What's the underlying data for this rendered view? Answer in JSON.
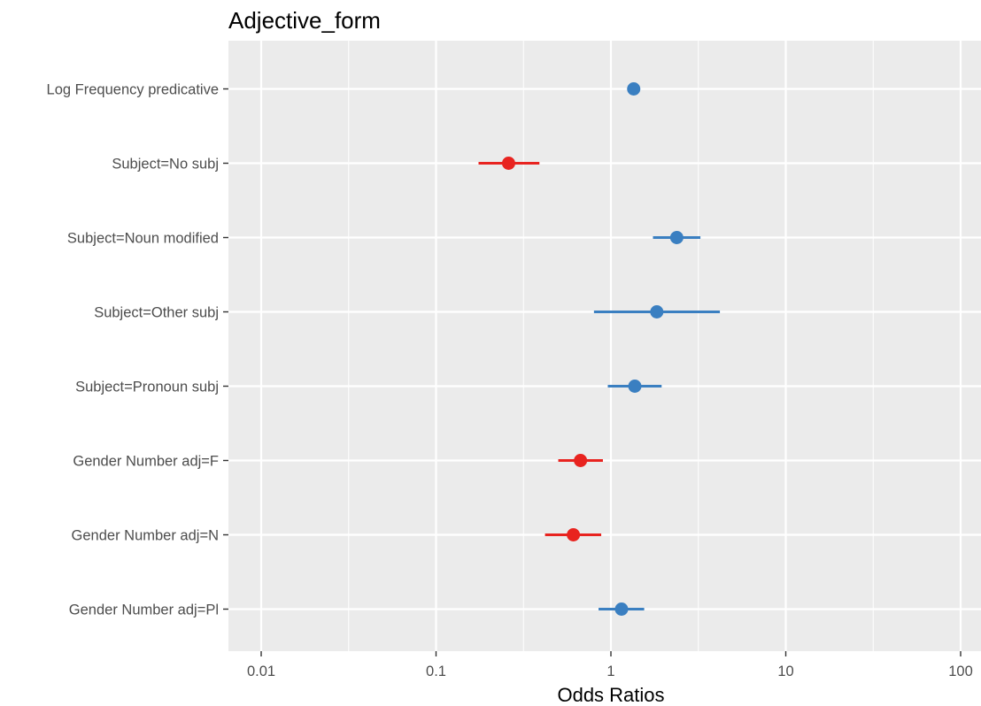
{
  "chart_data": {
    "type": "scatter",
    "title": "Adjective_form",
    "xlabel": "Odds Ratios",
    "ylabel": "",
    "x_scale": "log10",
    "xlim": [
      0.0066,
      150
    ],
    "x_ticks": [
      {
        "value": 0.01,
        "label": "0.01"
      },
      {
        "value": 0.1,
        "label": "0.1"
      },
      {
        "value": 1,
        "label": "1"
      },
      {
        "value": 10,
        "label": "10"
      },
      {
        "value": 100,
        "label": "100"
      }
    ],
    "grid": true,
    "legend": "none",
    "colors": {
      "positive": "#3a7fc1",
      "negative": "#e8231f",
      "panel": "#ebebeb",
      "grid": "#ffffff"
    },
    "terms": [
      {
        "label": "Log Frequency predicative",
        "estimate": 1.35,
        "ci_low": 1.35,
        "ci_high": 1.35,
        "direction": "positive"
      },
      {
        "label": "Subject=No subj",
        "estimate": 0.26,
        "ci_low": 0.175,
        "ci_high": 0.39,
        "direction": "negative"
      },
      {
        "label": "Subject=Noun modified",
        "estimate": 2.38,
        "ci_low": 1.74,
        "ci_high": 3.25,
        "direction": "positive"
      },
      {
        "label": "Subject=Other subj",
        "estimate": 1.83,
        "ci_low": 0.8,
        "ci_high": 4.2,
        "direction": "positive"
      },
      {
        "label": "Subject=Pronoun subj",
        "estimate": 1.37,
        "ci_low": 0.96,
        "ci_high": 1.95,
        "direction": "positive"
      },
      {
        "label": "Gender Number adj=F",
        "estimate": 0.67,
        "ci_low": 0.5,
        "ci_high": 0.9,
        "direction": "negative"
      },
      {
        "label": "Gender Number adj=N",
        "estimate": 0.61,
        "ci_low": 0.42,
        "ci_high": 0.88,
        "direction": "negative"
      },
      {
        "label": "Gender Number adj=Pl",
        "estimate": 1.15,
        "ci_low": 0.85,
        "ci_high": 1.55,
        "direction": "positive"
      }
    ]
  }
}
